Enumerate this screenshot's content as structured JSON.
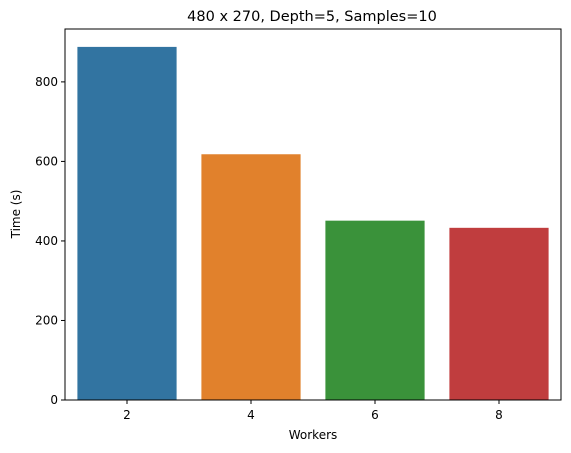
{
  "chart_data": {
    "type": "bar",
    "title": "480 x 270, Depth=5, Samples=10",
    "xlabel": "Workers",
    "ylabel": "Time (s)",
    "categories": [
      "2",
      "4",
      "6",
      "8"
    ],
    "values": [
      888,
      618,
      451,
      433
    ],
    "colors": [
      "#3274a1",
      "#e1812c",
      "#3a923a",
      "#c03d3e"
    ],
    "ylim": [
      0,
      933
    ],
    "yticks": [
      0,
      200,
      400,
      600,
      800
    ],
    "grid": false,
    "legend": "none"
  }
}
